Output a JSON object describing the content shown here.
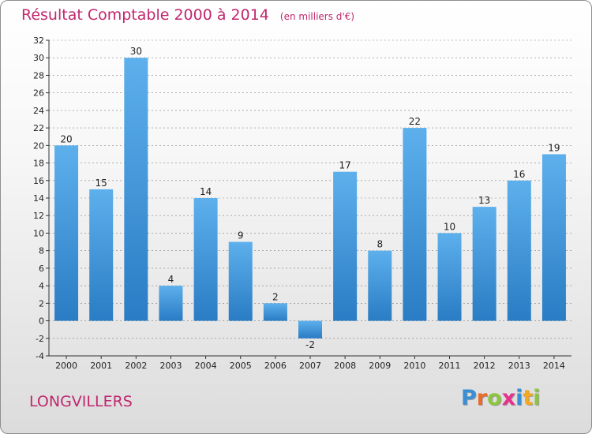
{
  "title": "Résultat Comptable 2000 à 2014",
  "subtitle": "(en milliers d'€)",
  "commune": "LONGVILLERS",
  "logo": {
    "text": "Proxiti",
    "letters": [
      {
        "char": "P",
        "color": "#3a8fd4"
      },
      {
        "char": "r",
        "color": "#ea6a2a"
      },
      {
        "char": "o",
        "color": "#8cc63f"
      },
      {
        "char": "x",
        "color": "#e8308c"
      },
      {
        "char": "i",
        "color": "#3a8fd4"
      },
      {
        "char": "t",
        "color": "#f4a81d"
      },
      {
        "char": "i",
        "color": "#8cc63f"
      }
    ]
  },
  "colors": {
    "bar_light": "#5db0ec",
    "bar_dark": "#2a7cc4",
    "title": "#c0276e",
    "grid": "#555555"
  },
  "chart_data": {
    "type": "bar",
    "title": "Résultat Comptable 2000 à 2014",
    "subtitle": "(en milliers d'€)",
    "xlabel": "",
    "ylabel": "",
    "categories": [
      "2000",
      "2001",
      "2002",
      "2003",
      "2004",
      "2005",
      "2006",
      "2007",
      "2008",
      "2009",
      "2010",
      "2011",
      "2012",
      "2013",
      "2014"
    ],
    "values": [
      20,
      15,
      30,
      4,
      14,
      9,
      2,
      -2,
      17,
      8,
      22,
      10,
      13,
      16,
      19
    ],
    "value_labels": [
      "20",
      "15",
      "30",
      "4",
      "14",
      "9",
      "2",
      "-2",
      "17",
      "8",
      "22",
      "10",
      "13",
      "16",
      "19"
    ],
    "ylim": [
      -4,
      32
    ],
    "y_ticks": [
      "-4",
      "-2",
      "0",
      "2",
      "4",
      "6",
      "8",
      "10",
      "12",
      "14",
      "16",
      "18",
      "20",
      "22",
      "24",
      "26",
      "28",
      "30",
      "32"
    ],
    "grid": "horizontal dashed",
    "legend": "none"
  }
}
